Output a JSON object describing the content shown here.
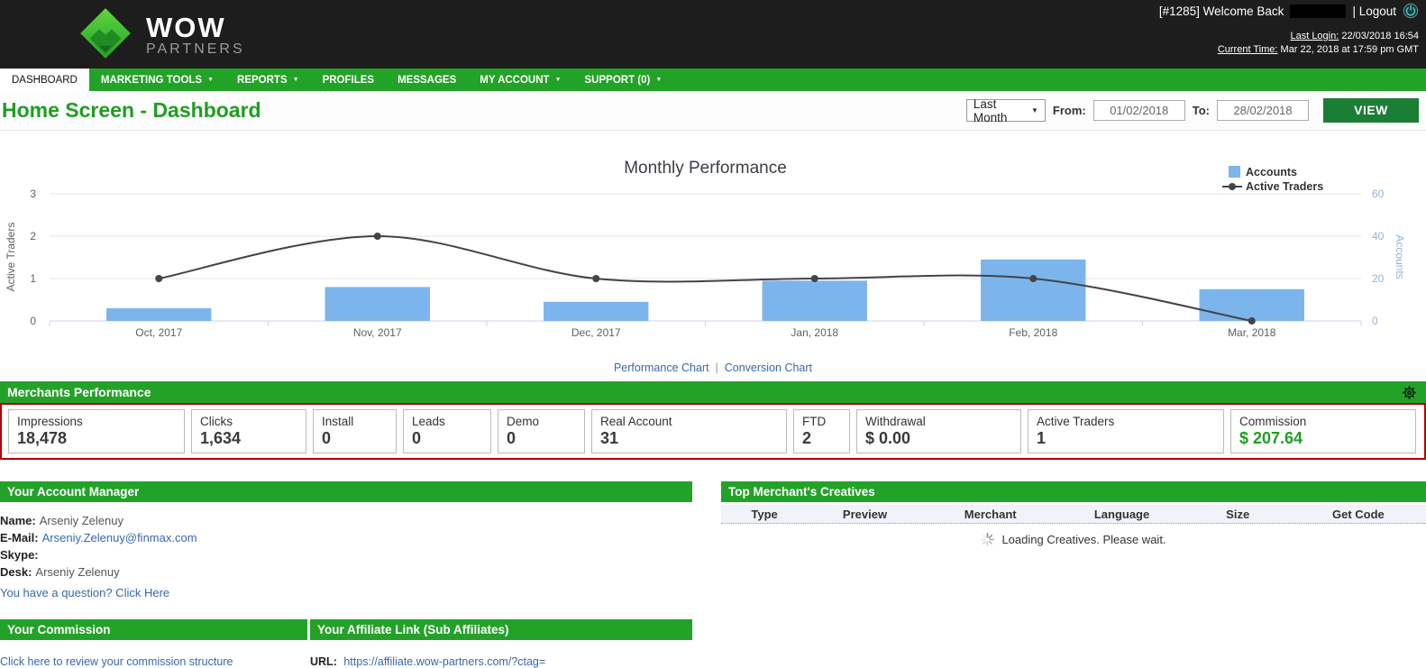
{
  "colors": {
    "nav_green": "#23a228",
    "button_green": "#1b7e35",
    "title_green": "#1f9e21",
    "header_bg": "#1d1d1d",
    "red_border": "#b20000",
    "link_blue": "#3a67ad",
    "bar_blue": "#7cb5ec",
    "line_dark": "#434348"
  },
  "header": {
    "logo_title": "WOW",
    "logo_subtitle": "PARTNERS",
    "welcome_prefix": "[#1285] Welcome Back",
    "logout_label": "| Logout",
    "last_login_label": "Last Login:",
    "last_login_value": "22/03/2018 16:54",
    "current_time_label": "Current Time:",
    "current_time_value": "Mar 22, 2018 at 17:59 pm GMT"
  },
  "nav": {
    "items": [
      {
        "label": "DASHBOARD",
        "active": true,
        "dropdown": false
      },
      {
        "label": "MARKETING TOOLS",
        "active": false,
        "dropdown": true
      },
      {
        "label": "REPORTS",
        "active": false,
        "dropdown": true
      },
      {
        "label": "PROFILES",
        "active": false,
        "dropdown": false
      },
      {
        "label": "MESSAGES",
        "active": false,
        "dropdown": false
      },
      {
        "label": "MY ACCOUNT",
        "active": false,
        "dropdown": true
      },
      {
        "label": "SUPPORT (0)",
        "active": false,
        "dropdown": true
      }
    ]
  },
  "page": {
    "title": "Home Screen - Dashboard"
  },
  "filters": {
    "period_selected": "Last Month",
    "from_label": "From:",
    "from_value": "01/02/2018",
    "to_label": "To:",
    "to_value": "28/02/2018",
    "view_button": "VIEW"
  },
  "chart_data": {
    "type": "bar",
    "subtype": "combo bar+line, dual axis",
    "title": "Monthly Performance",
    "categories": [
      "Oct, 2017",
      "Nov, 2017",
      "Dec, 2017",
      "Jan, 2018",
      "Feb, 2018",
      "Mar, 2018"
    ],
    "series": [
      {
        "name": "Accounts",
        "type": "bar",
        "axis": "right",
        "color": "#7cb5ec",
        "values": [
          6,
          16,
          9,
          19,
          29,
          15
        ]
      },
      {
        "name": "Active Traders",
        "type": "line",
        "axis": "left",
        "color": "#434348",
        "values": [
          1,
          2,
          1,
          1,
          1,
          0
        ]
      }
    ],
    "left_axis": {
      "label": "Active Traders",
      "ticks": [
        0,
        1,
        2,
        3
      ],
      "range": [
        0,
        3
      ],
      "color": "#606060"
    },
    "right_axis": {
      "label": "Accounts",
      "ticks": [
        0,
        20,
        40,
        60
      ],
      "range": [
        0,
        60
      ],
      "color": "#8fb4d9"
    },
    "legend": [
      "Accounts",
      "Active Traders"
    ],
    "legend_position": "top-right",
    "grid": true
  },
  "chart_links": {
    "performance": "Performance Chart",
    "separator": "|",
    "conversion": "Conversion Chart"
  },
  "merchants_performance": {
    "title": "Merchants Performance",
    "stats": [
      {
        "label": "Impressions",
        "value": "18,478",
        "highlight": false
      },
      {
        "label": "Clicks",
        "value": "1,634",
        "highlight": false
      },
      {
        "label": "Install",
        "value": "0",
        "highlight": false
      },
      {
        "label": "Leads",
        "value": "0",
        "highlight": false
      },
      {
        "label": "Demo",
        "value": "0",
        "highlight": false
      },
      {
        "label": "Real Account",
        "value": "31",
        "highlight": false
      },
      {
        "label": "FTD",
        "value": "2",
        "highlight": false
      },
      {
        "label": "Withdrawal",
        "value": "$ 0.00",
        "highlight": false
      },
      {
        "label": "Active Traders",
        "value": "1",
        "highlight": false
      },
      {
        "label": "Commission",
        "value": "$ 207.64",
        "highlight": true
      }
    ]
  },
  "account_manager": {
    "title": "Your Account Manager",
    "fields": [
      {
        "label": "Name:",
        "value": "Arseniy Zelenuy",
        "link": false
      },
      {
        "label": "E-Mail:",
        "value": "Arseniy.Zelenuy@finmax.com",
        "link": true
      },
      {
        "label": "Skype:",
        "value": "",
        "link": false
      },
      {
        "label": "Desk:",
        "value": "Arseniy Zelenuy",
        "link": false
      }
    ],
    "question_link": "You have a question? Click Here"
  },
  "creatives": {
    "title": "Top Merchant's Creatives",
    "columns": [
      "Type",
      "Preview",
      "Merchant",
      "Language",
      "Size",
      "Get Code"
    ],
    "loading_text": "Loading Creatives. Please wait."
  },
  "commission": {
    "title": "Your Commission",
    "link": "Click here to review your commission structure"
  },
  "affiliate_link": {
    "title": "Your Affiliate Link (Sub Affiliates)",
    "url_label": "URL:",
    "url_value": "https://affiliate.wow-partners.com/?ctag="
  }
}
